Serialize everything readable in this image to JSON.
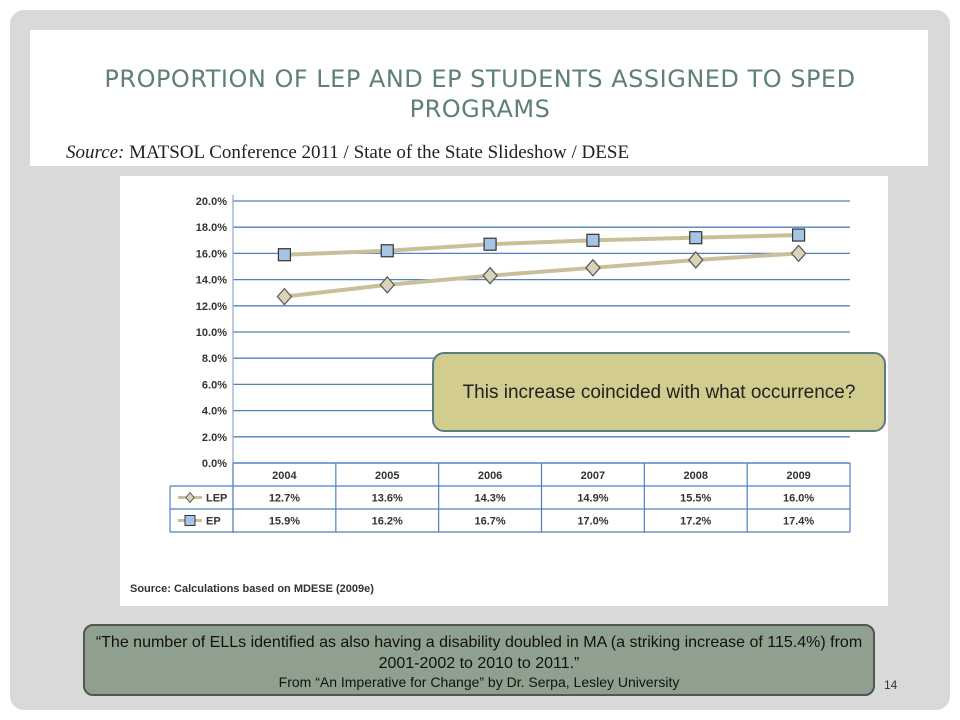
{
  "slide": {
    "title": "PROPORTION OF LEP AND EP STUDENTS ASSIGNED TO SPED PROGRAMS",
    "source_label": "Source:",
    "source_text": "MATSOL Conference 2011 / State of the State Slideshow / DESE",
    "callout": "This increase coincided with what occurrence?",
    "quote_text": "“The number of ELLs identified as also having a disability doubled in MA (a striking increase of 115.4%) from 2001-2002 to 2010 to 2011.”",
    "quote_citation": "From “An Imperative for Change” by Dr. Serpa, Lesley University",
    "page_number": "14"
  },
  "chart_data": {
    "type": "line",
    "categories": [
      "2004",
      "2005",
      "2006",
      "2007",
      "2008",
      "2009"
    ],
    "series": [
      {
        "name": "LEP",
        "values": [
          12.7,
          13.6,
          14.3,
          14.9,
          15.5,
          16.0
        ],
        "labels": [
          "12.7%",
          "13.6%",
          "14.3%",
          "14.9%",
          "15.5%",
          "16.0%"
        ],
        "marker": "diamond",
        "marker_color": "#d9d3b8",
        "line_color": "#c9c09a"
      },
      {
        "name": "EP",
        "values": [
          15.9,
          16.2,
          16.7,
          17.0,
          17.2,
          17.4
        ],
        "labels": [
          "15.9%",
          "16.2%",
          "16.7%",
          "17.0%",
          "17.2%",
          "17.4%"
        ],
        "marker": "square",
        "marker_color": "#a6c4e4",
        "line_color": "#c9c09a"
      }
    ],
    "yticks": [
      "0.0%",
      "2.0%",
      "4.0%",
      "6.0%",
      "8.0%",
      "10.0%",
      "12.0%",
      "14.0%",
      "16.0%",
      "18.0%",
      "20.0%"
    ],
    "ylim": [
      0,
      20
    ],
    "grid": true,
    "gridline_color": "#4f81bd",
    "data_table": true,
    "source_note": "Source:  Calculations based on MDESE (2009e)"
  }
}
